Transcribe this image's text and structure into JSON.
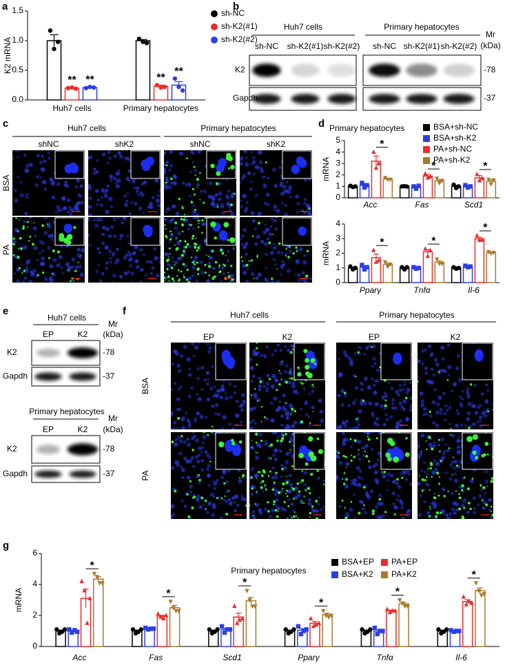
{
  "panel_labels": [
    "a",
    "b",
    "c",
    "d",
    "e",
    "f",
    "g"
  ],
  "blot_b": {
    "groups": [
      "Huh7 cells",
      "Primary hepatocytes"
    ],
    "lanes": [
      [
        "sh-NC",
        "sh-K2(#1)",
        "sh-K2(#2)"
      ],
      [
        "sh-NC",
        "sh-K2(#1)",
        "sh-K2(#2)"
      ]
    ],
    "mr": "Mr",
    "mr_unit": "(kDa)",
    "rows": [
      "K2",
      "Gapdh"
    ],
    "sizes": [
      "-78",
      "-37"
    ]
  },
  "images_c": {
    "groups": [
      "Huh7 cells",
      "Primary hepatocytes"
    ],
    "columns": [
      "shNC",
      "shK2",
      "shNC",
      "shK2"
    ],
    "rows": [
      "BSA",
      "PA"
    ]
  },
  "blot_e": [
    {
      "group": "Huh7 cells",
      "lanes": [
        "EP",
        "K2"
      ],
      "mr": "Mr",
      "mr_unit": "(kDa)",
      "rows": [
        "K2",
        "Gapdh"
      ],
      "sizes": [
        "-78",
        "-37"
      ]
    },
    {
      "group": "Primary hepatocytes",
      "lanes": [
        "EP",
        "K2"
      ],
      "mr": "Mr",
      "mr_unit": "(kDa)",
      "rows": [
        "K2",
        "Gapdh"
      ],
      "sizes": [
        "-78",
        "-37"
      ]
    }
  ],
  "images_f": {
    "groups": [
      "Huh7 cells",
      "Primary hepatocytes"
    ],
    "columns": [
      "EP",
      "K2",
      "EP",
      "K2"
    ],
    "rows": [
      "BSA",
      "PA"
    ]
  },
  "chart_data": [
    {
      "type": "bar",
      "ylabel": "K2 mRNA",
      "categories": [
        "Huh7 cells",
        "Primary hepatocytes"
      ],
      "ylim": [
        0,
        1.5
      ],
      "yticks": [
        {
          "value": 0,
          "label": "0.0"
        },
        0.5,
        {
          "value": 1,
          "label": "1.0"
        },
        1.5
      ],
      "series": [
        {
          "name": "sh-NC",
          "color": "#000000",
          "marker": "circle",
          "values": [
            1.0,
            1.0
          ],
          "errors": [
            0.1,
            0.02
          ],
          "points": [
            [
              1.17,
              0.86,
              0.98
            ],
            [
              1.03,
              0.98,
              0.96
            ]
          ]
        },
        {
          "name": "sh-K2(#1)",
          "color": "#ee2a2a",
          "marker": "circle",
          "values": [
            0.2,
            0.23
          ],
          "errors": [
            0.01,
            0.02
          ],
          "points": [
            [
              0.2,
              0.21,
              0.19
            ],
            [
              0.25,
              0.21,
              0.22
            ]
          ],
          "annotations": [
            "**",
            "**"
          ]
        },
        {
          "name": "sh-K2(#2)",
          "color": "#2b3ee6",
          "marker": "circle",
          "values": [
            0.21,
            0.25
          ],
          "errors": [
            0.01,
            0.06
          ],
          "points": [
            [
              0.2,
              0.22,
              0.21
            ],
            [
              0.36,
              0.22,
              0.16
            ]
          ],
          "annotations": [
            "**",
            "**"
          ]
        }
      ]
    },
    {
      "type": "bar",
      "title": "Primary hepatocytes",
      "ylabel": "mRNA",
      "categories": [
        "Acc",
        "Fas",
        "Scd1"
      ],
      "ylim": [
        0,
        5
      ],
      "yticks": [
        0,
        1,
        2,
        3,
        4,
        5
      ],
      "series": [
        {
          "name": "BSA+sh-NC",
          "color": "#000000",
          "marker": "circle",
          "values": [
            1.0,
            1.0,
            1.0
          ],
          "errors": [
            0.05,
            0.03,
            0.1
          ],
          "points": [
            [
              1.05,
              0.95,
              1.0
            ],
            [
              1.0,
              1.02,
              0.98
            ],
            [
              1.15,
              0.85,
              1.0
            ]
          ]
        },
        {
          "name": "BSA+sh-K2",
          "color": "#2b3ee6",
          "marker": "square",
          "values": [
            1.1,
            0.95,
            1.0
          ],
          "errors": [
            0.15,
            0.1,
            0.1
          ],
          "points": [
            [
              1.3,
              0.9,
              1.1
            ],
            [
              1.0,
              0.8,
              1.05
            ],
            [
              1.1,
              0.9,
              1.0
            ]
          ]
        },
        {
          "name": "PA+sh-NC",
          "color": "#ee2a2a",
          "marker": "triangle",
          "values": [
            3.2,
            1.9,
            1.75
          ],
          "errors": [
            0.45,
            0.15,
            0.2
          ],
          "points": [
            [
              4.0,
              2.6,
              3.0
            ],
            [
              2.1,
              1.75,
              1.85
            ],
            [
              2.05,
              1.5,
              1.7
            ]
          ]
        },
        {
          "name": "PA+sh-K2",
          "color": "#a8782c",
          "marker": "itriangle",
          "values": [
            1.65,
            1.5,
            1.45
          ],
          "errors": [
            0.05,
            0.12,
            0.12
          ],
          "points": [
            [
              1.75,
              1.6,
              1.6
            ],
            [
              1.7,
              1.3,
              1.5
            ],
            [
              1.6,
              1.2,
              1.55
            ]
          ],
          "annotations": [
            "*",
            "*",
            "*"
          ]
        }
      ]
    },
    {
      "type": "bar",
      "ylabel": "mRNA",
      "categories": [
        "Pparγ",
        "Tnfα",
        "Il-6"
      ],
      "ylim": [
        0,
        4
      ],
      "yticks": [
        0,
        1,
        2,
        3,
        4
      ],
      "series": [
        {
          "color": "#000000",
          "marker": "circle",
          "values": [
            1.0,
            1.0,
            1.0
          ],
          "errors": [
            0.06,
            0.05,
            0.03
          ],
          "points": [
            [
              1.1,
              0.9,
              1.0
            ],
            [
              1.05,
              0.9,
              1.05
            ],
            [
              1.05,
              0.95,
              1.0
            ]
          ]
        },
        {
          "color": "#2b3ee6",
          "marker": "square",
          "values": [
            1.05,
            1.0,
            1.1
          ],
          "errors": [
            0.09,
            0.03,
            0.03
          ],
          "points": [
            [
              1.2,
              0.9,
              1.05
            ],
            [
              1.05,
              0.95,
              1.0
            ],
            [
              1.15,
              1.05,
              1.1
            ]
          ]
        },
        {
          "color": "#ee2a2a",
          "marker": "triangle",
          "values": [
            1.7,
            2.1,
            3.0
          ],
          "errors": [
            0.25,
            0.15,
            0.1
          ],
          "points": [
            [
              2.2,
              1.4,
              1.5
            ],
            [
              2.3,
              1.8,
              2.2
            ],
            [
              3.2,
              2.9,
              2.9
            ]
          ]
        },
        {
          "color": "#a8782c",
          "marker": "itriangle",
          "values": [
            1.25,
            1.4,
            2.05
          ],
          "errors": [
            0.09,
            0.1,
            0.03
          ],
          "points": [
            [
              1.4,
              1.1,
              1.25
            ],
            [
              1.6,
              1.3,
              1.3
            ],
            [
              2.1,
              2.0,
              2.05
            ]
          ],
          "annotations": [
            "*",
            "*",
            "*"
          ]
        }
      ]
    },
    {
      "type": "bar",
      "title": "Primary hepatocytes",
      "ylabel": "mRNA",
      "categories": [
        "Acc",
        "Fas",
        "Scd1",
        "Pparγ",
        "Tnfα",
        "Il-6"
      ],
      "ylim": [
        0,
        6
      ],
      "yticks": [
        0,
        2,
        4,
        6
      ],
      "series": [
        {
          "name": "BSA+EP",
          "color": "#000000",
          "marker": "circle",
          "values": [
            1.0,
            1.0,
            1.0,
            1.0,
            1.0,
            1.0
          ],
          "errors": [
            0.06,
            0.06,
            0.06,
            0.06,
            0.06,
            0.06
          ],
          "points": [
            [
              1.1,
              0.85,
              0.95,
              1.1
            ],
            [
              1.1,
              0.85,
              0.95,
              1.1
            ],
            [
              1.1,
              0.85,
              0.95,
              1.1
            ],
            [
              1.1,
              0.85,
              0.95,
              1.1
            ],
            [
              1.1,
              0.85,
              0.95,
              1.1
            ],
            [
              1.1,
              0.85,
              0.95,
              1.1
            ]
          ]
        },
        {
          "name": "BSA+K2",
          "color": "#2b3ee6",
          "marker": "square",
          "values": [
            1.0,
            1.15,
            1.1,
            1.05,
            1.0,
            1.0
          ],
          "errors": [
            0.05,
            0.03,
            0.08,
            0.1,
            0.08,
            0.02
          ],
          "points": [
            [
              1.1,
              0.9,
              1.05,
              0.95
            ],
            [
              1.2,
              1.1,
              1.15,
              1.15
            ],
            [
              1.3,
              0.9,
              1.1,
              1.1
            ],
            [
              1.3,
              0.8,
              1.0,
              1.1
            ],
            [
              1.2,
              0.8,
              1.0,
              1.0
            ],
            [
              1.05,
              0.95,
              1.0,
              1.0
            ]
          ]
        },
        {
          "name": "PA+EP",
          "color": "#ee2a2a",
          "marker": "triangle",
          "values": [
            3.1,
            1.95,
            1.9,
            1.5,
            2.3,
            2.9
          ],
          "errors": [
            0.6,
            0.06,
            0.25,
            0.12,
            0.05,
            0.12
          ],
          "points": [
            [
              4.2,
              3.6,
              1.5,
              3.1
            ],
            [
              2.1,
              1.9,
              1.8,
              2.0
            ],
            [
              2.6,
              1.5,
              1.7,
              1.8
            ],
            [
              1.8,
              1.3,
              1.4,
              1.5
            ],
            [
              2.4,
              2.2,
              2.3,
              2.3
            ],
            [
              3.2,
              2.7,
              2.9,
              2.8
            ]
          ]
        },
        {
          "name": "PA+K2",
          "color": "#a8782c",
          "marker": "itriangle",
          "values": [
            4.35,
            2.5,
            2.95,
            2.05,
            2.75,
            3.6
          ],
          "errors": [
            0.15,
            0.15,
            0.22,
            0.1,
            0.1,
            0.18
          ],
          "points": [
            [
              4.7,
              4.5,
              4.1,
              4.1
            ],
            [
              2.9,
              2.5,
              2.3,
              2.3
            ],
            [
              3.6,
              3.0,
              2.6,
              2.6
            ],
            [
              2.3,
              2.0,
              1.9,
              2.0
            ],
            [
              3.0,
              2.8,
              2.6,
              2.6
            ],
            [
              4.1,
              3.6,
              3.3,
              3.4
            ]
          ],
          "annotations": [
            "*",
            "*",
            "*",
            "*",
            "*",
            "*"
          ]
        }
      ]
    }
  ]
}
